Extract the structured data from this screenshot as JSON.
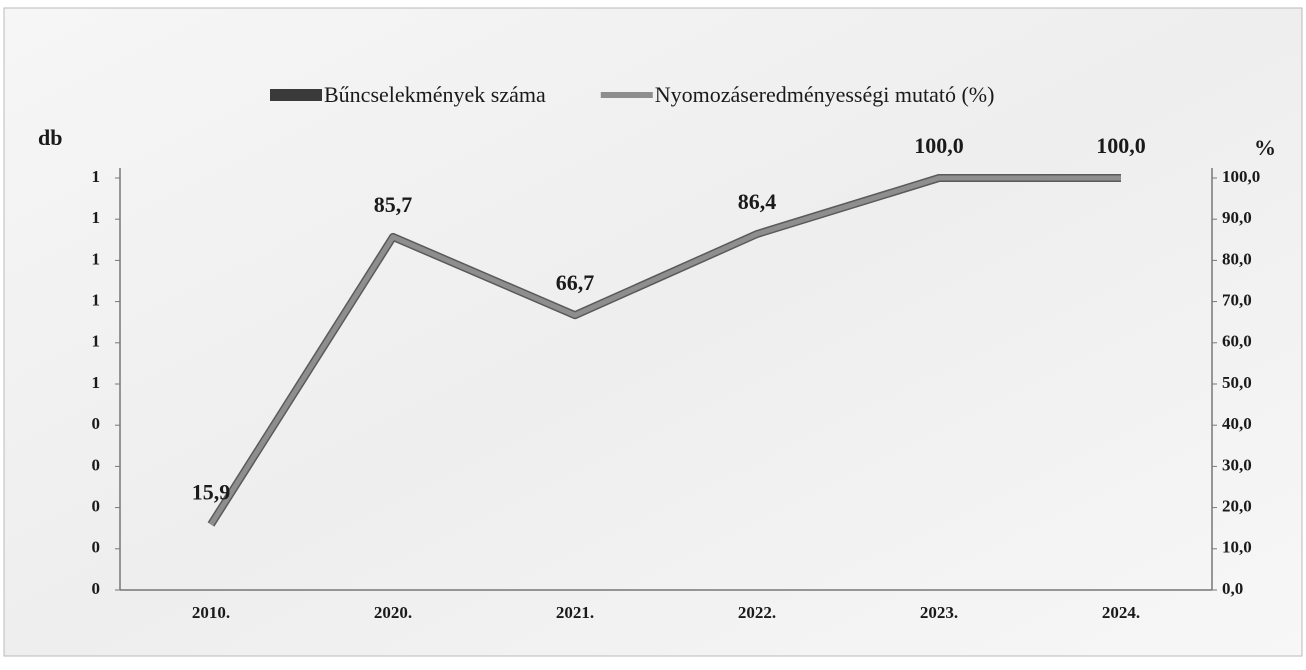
{
  "chart_data": {
    "type": "combo",
    "categories": [
      "2010.",
      "2020.",
      "2021.",
      "2022.",
      "2023.",
      "2024."
    ],
    "y_label": "db",
    "y2_label": "%",
    "series": [
      {
        "name": "Bűncselekmények száma",
        "type": "bar",
        "color": "#3a3a3a",
        "values": [
          0,
          0,
          0,
          0,
          0,
          0
        ]
      },
      {
        "name": "Nyomozáseredményességi mutató (%)",
        "type": "line",
        "axis": "y2",
        "color": "#8e8e8e",
        "values": [
          15.9,
          85.7,
          66.7,
          86.4,
          100,
          100
        ],
        "value_labels": [
          "15,9",
          "85,7",
          "66,7",
          "86,4",
          "100,0",
          "100,0"
        ]
      }
    ],
    "ylim": [
      0,
      1
    ],
    "yticks": [
      {
        "value": 0,
        "label": "0"
      },
      {
        "value": 0.1,
        "label": "0"
      },
      {
        "value": 0.2,
        "label": "0"
      },
      {
        "value": 0.3,
        "label": "0"
      },
      {
        "value": 0.4,
        "label": "0"
      },
      {
        "value": 0.5,
        "label": "1"
      },
      {
        "value": 0.6,
        "label": "1"
      },
      {
        "value": 0.7,
        "label": "1"
      },
      {
        "value": 0.8,
        "label": "1"
      },
      {
        "value": 0.9,
        "label": "1"
      },
      {
        "value": 1,
        "label": "1"
      }
    ],
    "y2lim": [
      0,
      100
    ],
    "y2ticks": [
      {
        "value": 0,
        "label": "0,0"
      },
      {
        "value": 10,
        "label": "10,0"
      },
      {
        "value": 20,
        "label": "20,0"
      },
      {
        "value": 30,
        "label": "30,0"
      },
      {
        "value": 40,
        "label": "40,0"
      },
      {
        "value": 50,
        "label": "50,0"
      },
      {
        "value": 60,
        "label": "60,0"
      },
      {
        "value": 70,
        "label": "70,0"
      },
      {
        "value": 80,
        "label": "80,0"
      },
      {
        "value": 90,
        "label": "90,0"
      },
      {
        "value": 100,
        "label": "100,0"
      }
    ],
    "legend": "top",
    "grid": false
  }
}
